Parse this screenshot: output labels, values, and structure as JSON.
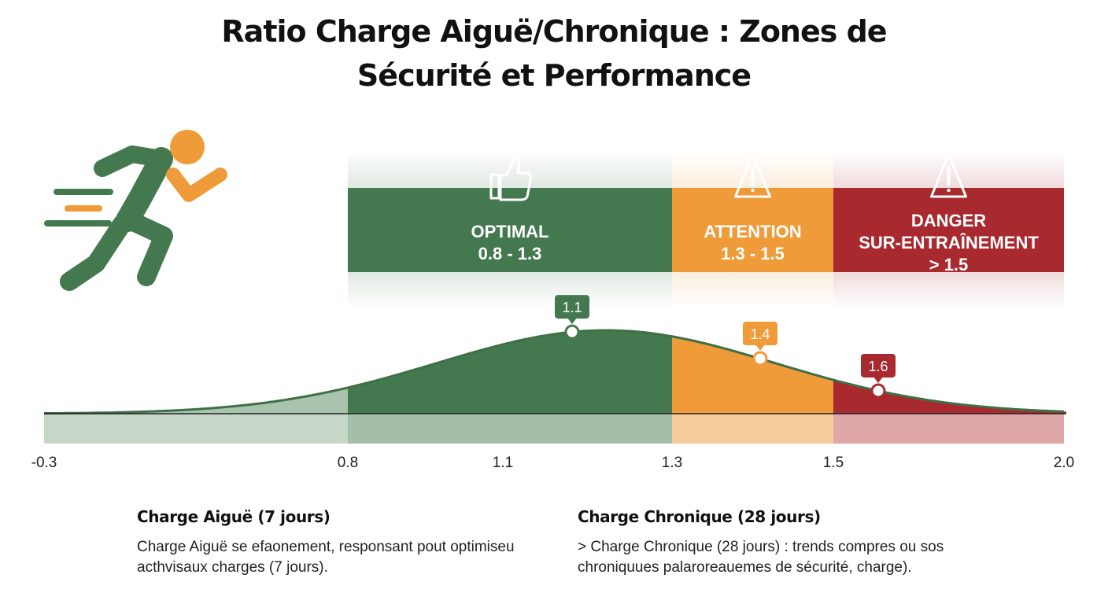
{
  "title": {
    "line1": "Ratio Charge Aiguë/Chronique : Zones de",
    "line2": "Sécurité et Performance"
  },
  "icons": {
    "runner": "running-person-icon",
    "optimal": "thumbs-up-icon",
    "attention": "warning-triangle-icon",
    "danger": "warning-triangle-icon"
  },
  "colors": {
    "optimal": "#44794f",
    "attention": "#ef9b3a",
    "danger": "#a8292e",
    "runner_body": "#44794f",
    "runner_accent": "#ef9b3a"
  },
  "chart_data": {
    "type": "area",
    "title": "Ratio Charge Aiguë/Chronique : Zones de Sécurité et Performance",
    "x_tick_labels": [
      "-0.3",
      "0.8",
      "1.1",
      "1.3",
      "1.5",
      "2.0"
    ],
    "zones": [
      {
        "name": "OPTIMAL",
        "range_label": "0.8 - 1.3",
        "from_tick": 1,
        "to_tick": 3,
        "color": "#44794f"
      },
      {
        "name": "ATTENTION",
        "range_label": "1.3 - 1.5",
        "from_tick": 3,
        "to_tick": 4,
        "color": "#ef9b3a"
      },
      {
        "name": "DANGER\nSUR-ENTRAÎNEMENT",
        "range_label": "> 1.5",
        "from_tick": 4,
        "to_tick": 5,
        "color": "#a8292e"
      }
    ],
    "markers": [
      {
        "label": "1.1",
        "zone": "optimal"
      },
      {
        "label": "1.4",
        "zone": "attention"
      },
      {
        "label": "1.6",
        "zone": "danger"
      }
    ],
    "curve": {
      "shape": "bell",
      "peak_value": 1.1
    },
    "grid": false
  },
  "notes": {
    "left": {
      "heading": "Charge Aiguë (7 jours)",
      "body": "Charge Aiguë se efaonement, responsant pout optimiseu acthvisaux charges (7 jours)."
    },
    "right": {
      "heading": "Charge Chronique (28 jours)",
      "body": "> Charge Chronique (28 jours) : trends compres ou sos chroniquues palaroreauemes de sécurité, charge)."
    }
  }
}
